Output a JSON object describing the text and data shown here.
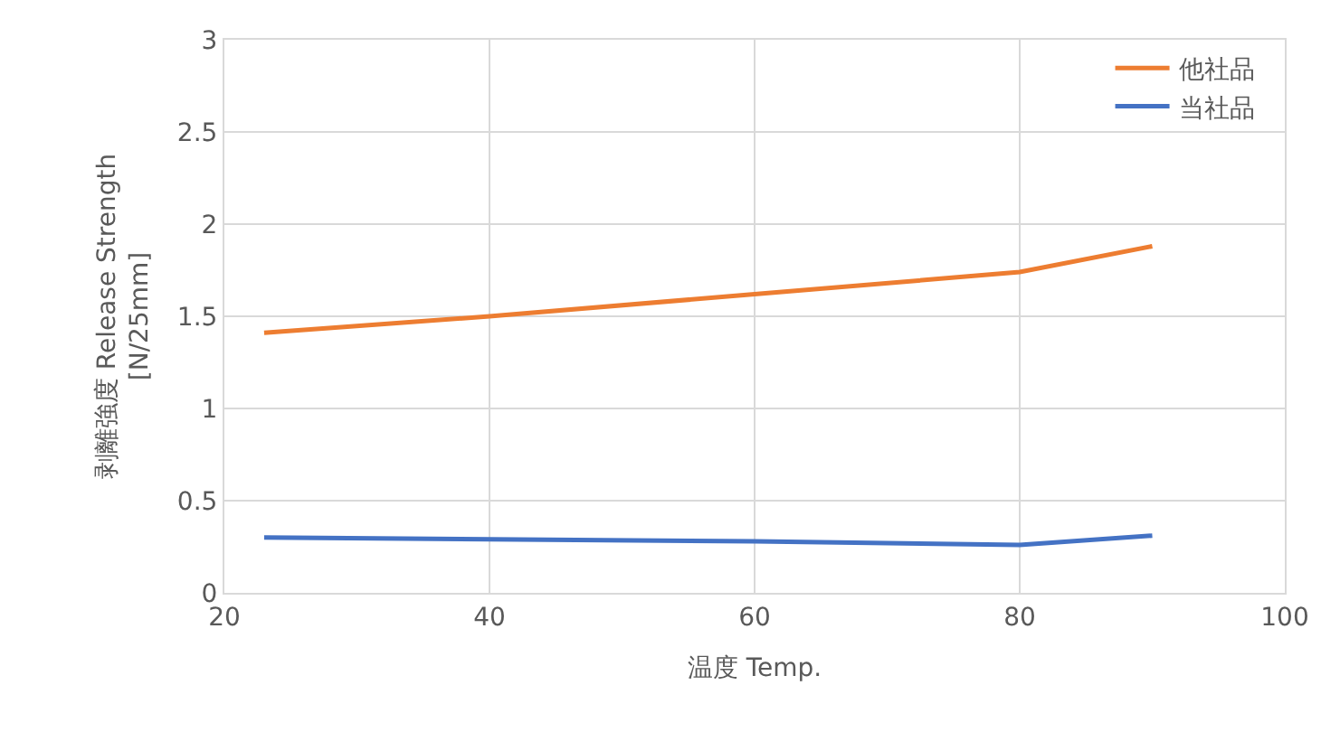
{
  "chart_data": {
    "type": "line",
    "xlabel": "温度 Temp.",
    "ylabel": "剥離強度 Release Strength\n[N/25mm]",
    "x": [
      23,
      40,
      60,
      80,
      90
    ],
    "series": [
      {
        "name": "他社品",
        "color": "#ed7d31",
        "values": [
          1.41,
          1.5,
          1.62,
          1.74,
          1.88
        ]
      },
      {
        "name": "当社品",
        "color": "#4472c4",
        "values": [
          0.3,
          0.29,
          0.28,
          0.26,
          0.31
        ]
      }
    ],
    "xlim": [
      20,
      100
    ],
    "xticks": [
      20,
      40,
      60,
      80,
      100
    ],
    "ylim": [
      0,
      3
    ],
    "yticks": [
      0,
      0.5,
      1,
      1.5,
      2,
      2.5,
      3
    ],
    "grid": true,
    "legend": "top right",
    "marker": "none",
    "line_style": "solid"
  }
}
